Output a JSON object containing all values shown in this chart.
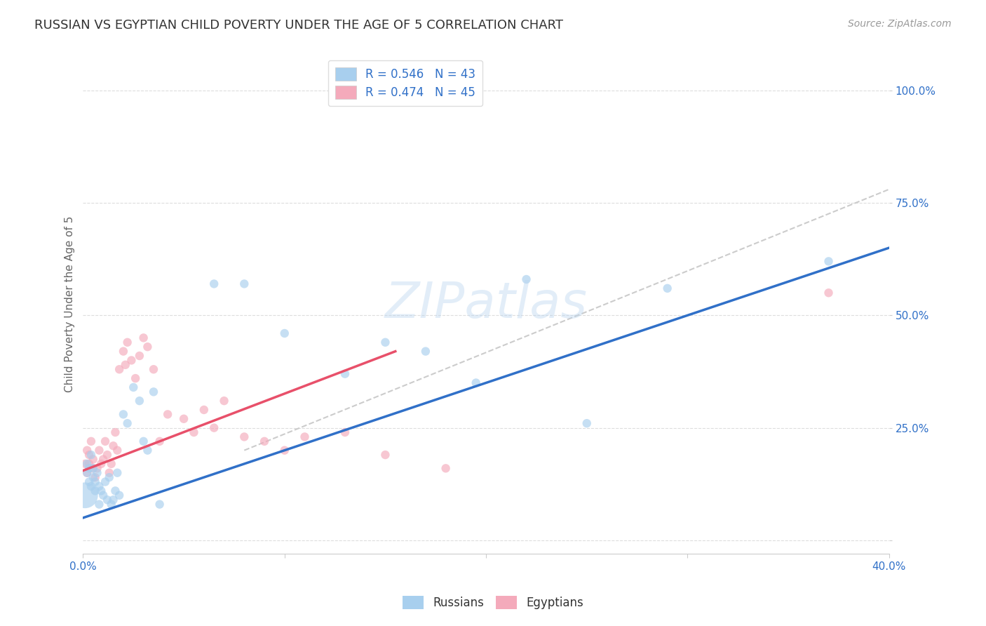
{
  "title": "RUSSIAN VS EGYPTIAN CHILD POVERTY UNDER THE AGE OF 5 CORRELATION CHART",
  "source": "Source: ZipAtlas.com",
  "ylabel": "Child Poverty Under the Age of 5",
  "legend_russian": "R = 0.546   N = 43",
  "legend_egyptian": "R = 0.474   N = 45",
  "legend_label1": "Russians",
  "legend_label2": "Egyptians",
  "xlim": [
    0.0,
    0.4
  ],
  "ylim": [
    -0.03,
    1.08
  ],
  "xticks": [
    0.0,
    0.1,
    0.2,
    0.3,
    0.4
  ],
  "xtick_labels": [
    "0.0%",
    "",
    "",
    "",
    "40.0%"
  ],
  "yticks": [
    0.0,
    0.25,
    0.5,
    0.75,
    1.0
  ],
  "ytick_labels": [
    "",
    "25.0%",
    "50.0%",
    "75.0%",
    "100.0%"
  ],
  "color_russian": "#A8CFEE",
  "color_egyptian": "#F4AABB",
  "color_russian_line": "#3070C8",
  "color_egyptian_line": "#E8506A",
  "color_ref_line": "#CCCCCC",
  "background_color": "#FFFFFF",
  "russian_x": [
    0.001,
    0.002,
    0.002,
    0.003,
    0.003,
    0.004,
    0.004,
    0.005,
    0.005,
    0.006,
    0.006,
    0.007,
    0.008,
    0.008,
    0.009,
    0.01,
    0.011,
    0.012,
    0.013,
    0.014,
    0.015,
    0.016,
    0.017,
    0.018,
    0.02,
    0.022,
    0.025,
    0.028,
    0.03,
    0.032,
    0.035,
    0.038,
    0.065,
    0.08,
    0.1,
    0.13,
    0.15,
    0.17,
    0.195,
    0.22,
    0.25,
    0.29,
    0.37
  ],
  "russian_y": [
    0.1,
    0.15,
    0.17,
    0.13,
    0.16,
    0.12,
    0.19,
    0.14,
    0.16,
    0.11,
    0.13,
    0.15,
    0.12,
    0.08,
    0.11,
    0.1,
    0.13,
    0.09,
    0.14,
    0.08,
    0.09,
    0.11,
    0.15,
    0.1,
    0.28,
    0.26,
    0.34,
    0.31,
    0.22,
    0.2,
    0.33,
    0.08,
    0.57,
    0.57,
    0.46,
    0.37,
    0.44,
    0.42,
    0.35,
    0.58,
    0.26,
    0.56,
    0.62
  ],
  "russian_sizes": [
    700,
    80,
    80,
    80,
    80,
    80,
    80,
    80,
    80,
    80,
    80,
    80,
    80,
    80,
    80,
    80,
    80,
    80,
    80,
    80,
    80,
    80,
    80,
    80,
    80,
    80,
    80,
    80,
    80,
    80,
    80,
    80,
    80,
    80,
    80,
    80,
    80,
    80,
    80,
    80,
    80,
    80,
    80
  ],
  "egyptian_x": [
    0.001,
    0.002,
    0.002,
    0.003,
    0.003,
    0.004,
    0.005,
    0.005,
    0.006,
    0.007,
    0.008,
    0.009,
    0.01,
    0.011,
    0.012,
    0.013,
    0.014,
    0.015,
    0.016,
    0.017,
    0.018,
    0.02,
    0.021,
    0.022,
    0.024,
    0.026,
    0.028,
    0.03,
    0.032,
    0.035,
    0.038,
    0.042,
    0.05,
    0.055,
    0.06,
    0.065,
    0.07,
    0.08,
    0.09,
    0.1,
    0.11,
    0.13,
    0.15,
    0.18,
    0.37
  ],
  "egyptian_y": [
    0.17,
    0.2,
    0.15,
    0.17,
    0.19,
    0.22,
    0.16,
    0.18,
    0.14,
    0.16,
    0.2,
    0.17,
    0.18,
    0.22,
    0.19,
    0.15,
    0.17,
    0.21,
    0.24,
    0.2,
    0.38,
    0.42,
    0.39,
    0.44,
    0.4,
    0.36,
    0.41,
    0.45,
    0.43,
    0.38,
    0.22,
    0.28,
    0.27,
    0.24,
    0.29,
    0.25,
    0.31,
    0.23,
    0.22,
    0.2,
    0.23,
    0.24,
    0.19,
    0.16,
    0.55
  ],
  "egyptian_sizes": [
    80,
    80,
    80,
    80,
    80,
    80,
    80,
    80,
    80,
    80,
    80,
    80,
    80,
    80,
    80,
    80,
    80,
    80,
    80,
    80,
    80,
    80,
    80,
    80,
    80,
    80,
    80,
    80,
    80,
    80,
    80,
    80,
    80,
    80,
    80,
    80,
    80,
    80,
    80,
    80,
    80,
    80,
    80,
    80,
    80
  ],
  "russian_line": [
    [
      0.0,
      0.4
    ],
    [
      0.05,
      0.65
    ]
  ],
  "egyptian_line": [
    [
      0.0,
      0.155
    ],
    [
      0.155,
      0.42
    ]
  ],
  "ref_line": [
    [
      0.08,
      0.4
    ],
    [
      0.2,
      0.78
    ]
  ],
  "title_fontsize": 13,
  "source_fontsize": 10,
  "label_fontsize": 11,
  "tick_fontsize": 11,
  "legend_fontsize": 12
}
